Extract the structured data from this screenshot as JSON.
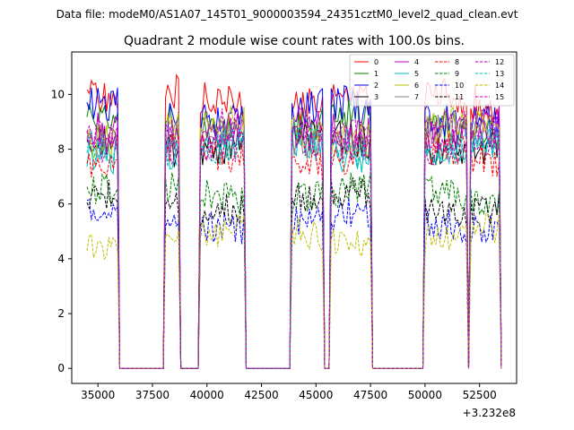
{
  "chart_data": {
    "type": "line",
    "suptitle": "Data file: modeM0/AS1A07_145T01_9000003594_24351cztM0_level2_quad_clean.evt",
    "title": "Quadrant 2 module wise count rates with 100.0s bins.",
    "xlabel": "",
    "ylabel": "",
    "x_offset_label": "+3.232e8",
    "xlim": [
      33800,
      54200
    ],
    "ylim": [
      -0.55,
      11.55
    ],
    "x_ticks": [
      35000,
      37500,
      40000,
      42500,
      45000,
      47500,
      50000,
      52500
    ],
    "x_tick_labels": [
      "35000",
      "37500",
      "40000",
      "42500",
      "45000",
      "47500",
      "50000",
      "52500"
    ],
    "y_ticks": [
      0,
      2,
      4,
      6,
      8,
      10
    ],
    "y_tick_labels": [
      "0",
      "2",
      "4",
      "6",
      "8",
      "10"
    ],
    "grid": false,
    "legend_position": "top-right",
    "time_bin_s": 100,
    "segments": [
      {
        "t_start": 34500,
        "t_end": 35900
      },
      {
        "t_start": 38100,
        "t_end": 38700
      },
      {
        "t_start": 39700,
        "t_end": 41700
      },
      {
        "t_start": 43900,
        "t_end": 45300
      },
      {
        "t_start": 45700,
        "t_end": 47500
      },
      {
        "t_start": 50000,
        "t_end": 51900
      },
      {
        "t_start": 52100,
        "t_end": 53400
      }
    ],
    "series": [
      {
        "name": "0",
        "color": "#ff0000",
        "style": "solid",
        "mean_rate": 9.8
      },
      {
        "name": "1",
        "color": "#008000",
        "style": "solid",
        "mean_rate": 8.9
      },
      {
        "name": "2",
        "color": "#0000ff",
        "style": "solid",
        "mean_rate": 9.3
      },
      {
        "name": "3",
        "color": "#000000",
        "style": "solid",
        "mean_rate": 8.2
      },
      {
        "name": "4",
        "color": "#bf00bf",
        "style": "solid",
        "mean_rate": 8.7
      },
      {
        "name": "5",
        "color": "#00bfbf",
        "style": "solid",
        "mean_rate": 8.0
      },
      {
        "name": "6",
        "color": "#bfbf00",
        "style": "solid",
        "mean_rate": 8.6
      },
      {
        "name": "7",
        "color": "#808080",
        "style": "solid",
        "mean_rate": 8.4
      },
      {
        "name": "8",
        "color": "#ff0000",
        "style": "dashed",
        "mean_rate": 7.7
      },
      {
        "name": "9",
        "color": "#008000",
        "style": "dashed",
        "mean_rate": 6.4
      },
      {
        "name": "10",
        "color": "#0000ff",
        "style": "dashed",
        "mean_rate": 5.4
      },
      {
        "name": "11",
        "color": "#000000",
        "style": "dashed",
        "mean_rate": 6.1
      },
      {
        "name": "12",
        "color": "#bf00bf",
        "style": "dashed",
        "mean_rate": 8.3
      },
      {
        "name": "13",
        "color": "#00bfbf",
        "style": "dashed",
        "mean_rate": 8.1
      },
      {
        "name": "14",
        "color": "#bfbf00",
        "style": "dashed",
        "mean_rate": 4.8
      },
      {
        "name": "15",
        "color": "#bf00bf",
        "style": "dashed",
        "mean_rate": 8.5
      }
    ]
  }
}
